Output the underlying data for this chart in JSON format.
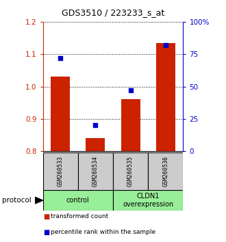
{
  "title": "GDS3510 / 223233_s_at",
  "samples": [
    "GSM260533",
    "GSM260534",
    "GSM260535",
    "GSM260536"
  ],
  "transformed_counts": [
    1.03,
    0.84,
    0.96,
    1.135
  ],
  "percentile_ranks": [
    72,
    20,
    47,
    82
  ],
  "ylim_left": [
    0.8,
    1.2
  ],
  "ylim_right": [
    0,
    100
  ],
  "yticks_left": [
    0.8,
    0.9,
    1.0,
    1.1,
    1.2
  ],
  "yticks_right": [
    0,
    25,
    50,
    75,
    100
  ],
  "ytick_labels_right": [
    "0",
    "25",
    "50",
    "75",
    "100%"
  ],
  "bar_color": "#cc2200",
  "dot_color": "#0000cc",
  "group_labels": [
    "control",
    "CLDN1\noverexpression"
  ],
  "group_ranges": [
    [
      0,
      2
    ],
    [
      2,
      4
    ]
  ],
  "group_color": "#99ee99",
  "sample_box_color": "#cccccc",
  "legend_red_label": "transformed count",
  "legend_blue_label": "percentile rank within the sample",
  "protocol_label": "protocol"
}
